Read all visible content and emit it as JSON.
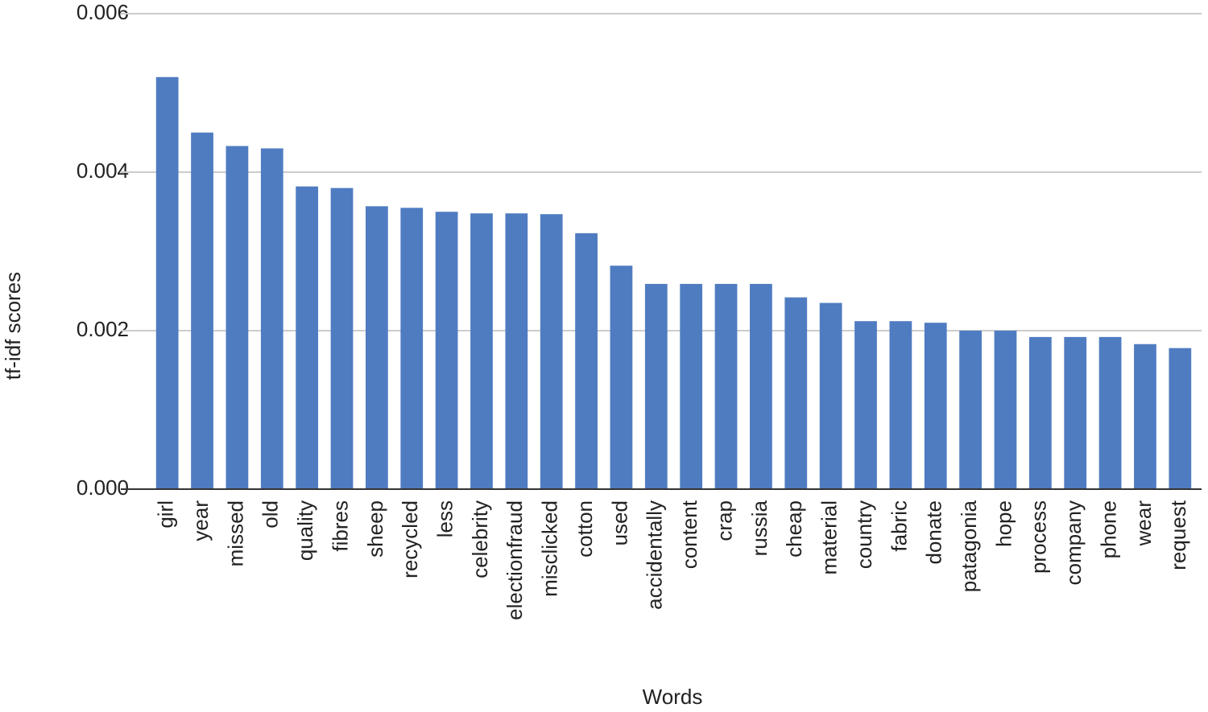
{
  "chart_data": {
    "type": "bar",
    "x_label": "Words",
    "y_label": "tf-idf scores",
    "categories": [
      "girl",
      "year",
      "missed",
      "old",
      "quality",
      "fibres",
      "sheep",
      "recycled",
      "less",
      "celebrity",
      "electionfraud",
      "misclicked",
      "cotton",
      "used",
      "accidentally",
      "content",
      "crap",
      "russia",
      "cheap",
      "material",
      "country",
      "fabric",
      "donate",
      "patagonia",
      "hope",
      "process",
      "company",
      "phone",
      "wear",
      "request"
    ],
    "values": [
      0.0052,
      0.0045,
      0.00433,
      0.0043,
      0.00382,
      0.0038,
      0.00357,
      0.00355,
      0.0035,
      0.00348,
      0.00348,
      0.00347,
      0.00323,
      0.00282,
      0.00259,
      0.00259,
      0.00259,
      0.00259,
      0.00242,
      0.00235,
      0.00212,
      0.00212,
      0.0021,
      0.002,
      0.002,
      0.00192,
      0.00192,
      0.00192,
      0.00183,
      0.00178
    ],
    "color": "#4f7cc1",
    "ylim": [
      0,
      0.006
    ],
    "yticks": [
      {
        "value": 0,
        "label": "0.000"
      },
      0.002,
      0.004,
      0.006
    ],
    "grid": true
  }
}
